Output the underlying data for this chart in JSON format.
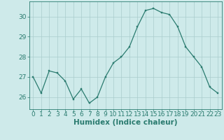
{
  "x": [
    0,
    1,
    2,
    3,
    4,
    5,
    6,
    7,
    8,
    9,
    10,
    11,
    12,
    13,
    14,
    15,
    16,
    17,
    18,
    19,
    20,
    21,
    22,
    23
  ],
  "y": [
    27.0,
    26.2,
    27.3,
    27.2,
    26.8,
    25.9,
    26.4,
    25.7,
    26.0,
    27.0,
    27.7,
    28.0,
    28.5,
    29.5,
    30.3,
    30.4,
    30.2,
    30.1,
    29.5,
    28.5,
    28.0,
    27.5,
    26.5,
    26.2
  ],
  "line_color": "#2a7b6f",
  "marker_color": "#2a7b6f",
  "bg_color": "#ceeaea",
  "grid_color": "#aacccc",
  "axis_color": "#2a7b6f",
  "tick_color": "#2a7b6f",
  "xlabel": "Humidex (Indice chaleur)",
  "ylim": [
    25.4,
    30.75
  ],
  "xlim": [
    -0.5,
    23.5
  ],
  "yticks": [
    26,
    27,
    28,
    29,
    30
  ],
  "xticks": [
    0,
    1,
    2,
    3,
    4,
    5,
    6,
    7,
    8,
    9,
    10,
    11,
    12,
    13,
    14,
    15,
    16,
    17,
    18,
    19,
    20,
    21,
    22,
    23
  ],
  "font_size_label": 7.5,
  "font_size_tick": 6.5
}
